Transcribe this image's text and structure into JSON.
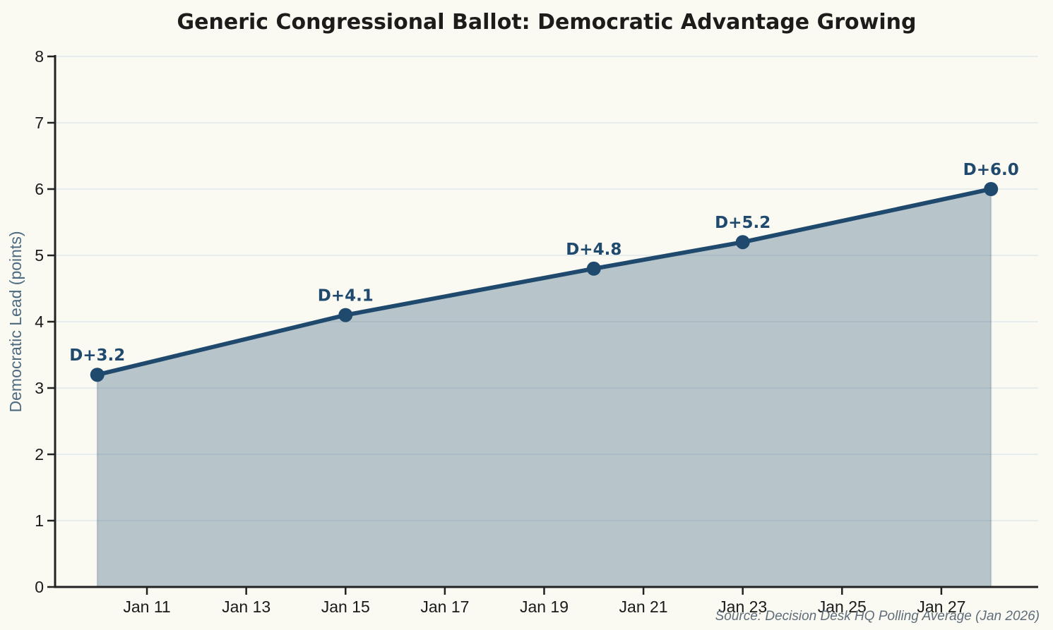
{
  "chart_data": {
    "type": "area",
    "title": "Generic Congressional Ballot: Democratic Advantage Growing",
    "xlabel": "",
    "ylabel": "Democratic Lead (points)",
    "source_note": "Source: Decision Desk HQ Polling Average (Jan 2026)",
    "x_unit": "date (January 2026)",
    "series": [
      {
        "name": "Democratic lead (points)",
        "points": [
          {
            "date": "Jan 10",
            "day": 10,
            "value": 3.2,
            "label": "D+3.2"
          },
          {
            "date": "Jan 15",
            "day": 15,
            "value": 4.1,
            "label": "D+4.1"
          },
          {
            "date": "Jan 20",
            "day": 20,
            "value": 4.8,
            "label": "D+4.8"
          },
          {
            "date": "Jan 23",
            "day": 23,
            "value": 5.2,
            "label": "D+5.2"
          },
          {
            "date": "Jan 28",
            "day": 28,
            "value": 6.0,
            "label": "D+6.0"
          }
        ]
      }
    ],
    "x_ticks": [
      {
        "day": 11,
        "label": "Jan 11"
      },
      {
        "day": 13,
        "label": "Jan 13"
      },
      {
        "day": 15,
        "label": "Jan 15"
      },
      {
        "day": 17,
        "label": "Jan 17"
      },
      {
        "day": 19,
        "label": "Jan 19"
      },
      {
        "day": 21,
        "label": "Jan 21"
      },
      {
        "day": 23,
        "label": "Jan 23"
      },
      {
        "day": 25,
        "label": "Jan 25"
      },
      {
        "day": 27,
        "label": "Jan 27"
      }
    ],
    "y_ticks": [
      0,
      1,
      2,
      3,
      4,
      5,
      6,
      7,
      8
    ],
    "xlim_days": [
      9.15,
      28.95
    ],
    "ylim": [
      0,
      8
    ],
    "grid": "horizontal",
    "legend": "none",
    "colors": {
      "background": "#faf9f2",
      "line": "#1f4a6e",
      "marker": "#1f4a6e",
      "area_fill": "rgba(31,74,110,0.30)",
      "area_edge": "rgba(31,74,110,0.18)",
      "gridline": "rgba(218,227,234,0.60)",
      "axis": "#222222",
      "tick_label": "#1a1a1a",
      "point_label": "#1f4a6e",
      "ylabel_text": "#4c6a80",
      "source_text": "#5f6e7a",
      "title_text": "#1e1c1a"
    }
  }
}
